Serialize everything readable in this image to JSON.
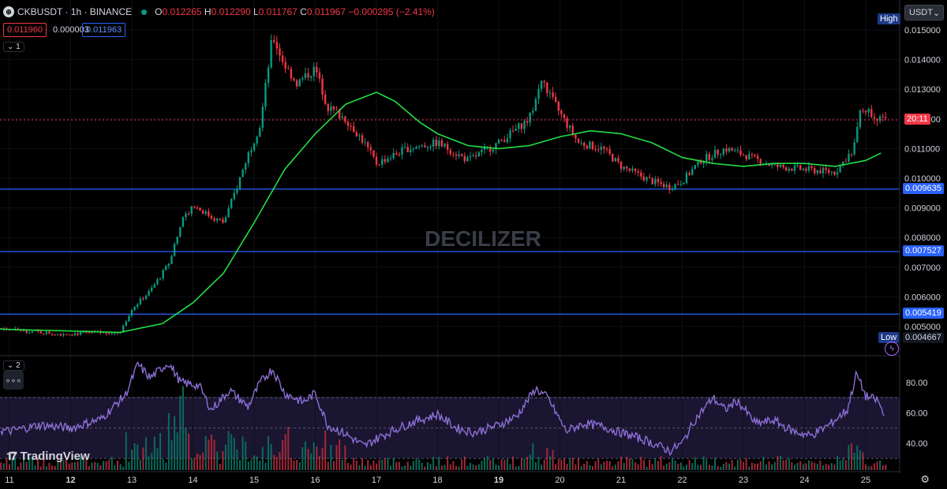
{
  "header": {
    "symbol": "CKBUSDT · 1h · BINANCE",
    "o": "0.012265",
    "h": "0.012290",
    "l": "0.011767",
    "c": "0.011967",
    "change": "−0.000295 (−2.41%)",
    "bid": "0.011960",
    "spread": "0.000003",
    "ask": "0.011963",
    "pane1": "1",
    "pane2": "2"
  },
  "currency": "USDT",
  "watermark": "DECILIZER",
  "branding": "TradingView",
  "chart_data": [
    {
      "type": "candlestick",
      "pane": "price",
      "x_ticks": [
        "11",
        "12",
        "13",
        "14",
        "15",
        "16",
        "17",
        "18",
        "19",
        "20",
        "21",
        "22",
        "23",
        "24",
        "25"
      ],
      "y_ticks": [
        "0.005000",
        "0.006000",
        "0.007000",
        "0.008000",
        "0.009000",
        "0.010000",
        "0.011000",
        "0.012000",
        "0.013000",
        "0.014000",
        "0.015000"
      ],
      "ylim": [
        0.0043,
        0.0155
      ],
      "high_label": "High",
      "low_label": "Low",
      "low_value": "0.004667",
      "current_price_countdown": "20:11",
      "current_price": 0.011967,
      "horizontal_levels": [
        {
          "value": 0.009635,
          "label": "0.009635"
        },
        {
          "value": 0.007527,
          "label": "0.007527"
        },
        {
          "value": 0.005419,
          "label": "0.005419"
        }
      ],
      "close_path": [
        [
          10.0,
          0.00505
        ],
        [
          11.0,
          0.0049
        ],
        [
          11.8,
          0.00475
        ],
        [
          12.8,
          0.0048
        ],
        [
          13.0,
          0.0056
        ],
        [
          13.3,
          0.0062
        ],
        [
          13.6,
          0.0071
        ],
        [
          13.8,
          0.0085
        ],
        [
          14.0,
          0.0091
        ],
        [
          14.3,
          0.0087
        ],
        [
          14.5,
          0.0085
        ],
        [
          14.7,
          0.0096
        ],
        [
          14.9,
          0.0108
        ],
        [
          15.1,
          0.0118
        ],
        [
          15.3,
          0.0148
        ],
        [
          15.5,
          0.0138
        ],
        [
          15.7,
          0.0132
        ],
        [
          16.0,
          0.0137
        ],
        [
          16.2,
          0.0124
        ],
        [
          16.5,
          0.012
        ],
        [
          16.8,
          0.0112
        ],
        [
          17.0,
          0.0105
        ],
        [
          17.5,
          0.011
        ],
        [
          18.0,
          0.0112
        ],
        [
          18.5,
          0.0106
        ],
        [
          19.0,
          0.0112
        ],
        [
          19.5,
          0.012
        ],
        [
          19.7,
          0.0133
        ],
        [
          20.0,
          0.0122
        ],
        [
          20.3,
          0.0112
        ],
        [
          20.7,
          0.011
        ],
        [
          21.0,
          0.0104
        ],
        [
          21.5,
          0.0099
        ],
        [
          21.8,
          0.0097
        ],
        [
          22.0,
          0.0099
        ],
        [
          22.3,
          0.0106
        ],
        [
          22.7,
          0.011
        ],
        [
          23.0,
          0.0108
        ],
        [
          23.5,
          0.0104
        ],
        [
          24.0,
          0.0103
        ],
        [
          24.5,
          0.0102
        ],
        [
          24.8,
          0.011
        ],
        [
          24.9,
          0.0124
        ],
        [
          25.1,
          0.0122
        ],
        [
          25.3,
          0.0119
        ]
      ],
      "ma_path": [
        [
          10.0,
          0.005
        ],
        [
          11.0,
          0.0049
        ],
        [
          12.0,
          0.00485
        ],
        [
          12.8,
          0.0048
        ],
        [
          13.5,
          0.0051
        ],
        [
          14.0,
          0.0058
        ],
        [
          14.5,
          0.0068
        ],
        [
          15.0,
          0.0085
        ],
        [
          15.5,
          0.0103
        ],
        [
          16.0,
          0.0115
        ],
        [
          16.5,
          0.0125
        ],
        [
          17.0,
          0.0129
        ],
        [
          17.3,
          0.0126
        ],
        [
          17.7,
          0.0119
        ],
        [
          18.0,
          0.0115
        ],
        [
          18.5,
          0.0111
        ],
        [
          19.0,
          0.011
        ],
        [
          19.5,
          0.0111
        ],
        [
          20.0,
          0.0114
        ],
        [
          20.5,
          0.0116
        ],
        [
          21.0,
          0.0115
        ],
        [
          21.5,
          0.0112
        ],
        [
          22.0,
          0.0107
        ],
        [
          22.5,
          0.0105
        ],
        [
          23.0,
          0.0104
        ],
        [
          23.5,
          0.0105
        ],
        [
          24.0,
          0.0105
        ],
        [
          24.5,
          0.0104
        ],
        [
          25.0,
          0.0106
        ],
        [
          25.3,
          0.0109
        ]
      ]
    },
    {
      "type": "line",
      "pane": "indicator",
      "y_ticks": [
        "80.00",
        "60.00",
        "40.00"
      ],
      "ylim": [
        20,
        100
      ],
      "guide_levels": [
        70,
        50,
        30
      ],
      "line_path": [
        [
          10.0,
          52
        ],
        [
          10.5,
          50
        ],
        [
          11.0,
          48
        ],
        [
          11.5,
          52
        ],
        [
          12.0,
          50
        ],
        [
          12.5,
          56
        ],
        [
          12.9,
          72
        ],
        [
          13.1,
          92
        ],
        [
          13.3,
          83
        ],
        [
          13.6,
          93
        ],
        [
          13.8,
          80
        ],
        [
          14.1,
          78
        ],
        [
          14.3,
          62
        ],
        [
          14.6,
          75
        ],
        [
          14.9,
          64
        ],
        [
          15.1,
          80
        ],
        [
          15.3,
          89
        ],
        [
          15.5,
          73
        ],
        [
          15.8,
          67
        ],
        [
          16.0,
          73
        ],
        [
          16.2,
          52
        ],
        [
          16.5,
          46
        ],
        [
          16.8,
          38
        ],
        [
          17.0,
          43
        ],
        [
          17.3,
          49
        ],
        [
          17.6,
          54
        ],
        [
          18.0,
          59
        ],
        [
          18.3,
          50
        ],
        [
          18.6,
          47
        ],
        [
          19.0,
          52
        ],
        [
          19.3,
          58
        ],
        [
          19.6,
          76
        ],
        [
          19.8,
          70
        ],
        [
          20.1,
          48
        ],
        [
          20.4,
          53
        ],
        [
          20.7,
          51
        ],
        [
          21.0,
          47
        ],
        [
          21.4,
          42
        ],
        [
          21.8,
          35
        ],
        [
          22.0,
          40
        ],
        [
          22.2,
          55
        ],
        [
          22.5,
          70
        ],
        [
          22.7,
          62
        ],
        [
          22.9,
          68
        ],
        [
          23.2,
          53
        ],
        [
          23.5,
          55
        ],
        [
          23.8,
          48
        ],
        [
          24.1,
          45
        ],
        [
          24.4,
          52
        ],
        [
          24.7,
          62
        ],
        [
          24.85,
          86
        ],
        [
          25.0,
          71
        ],
        [
          25.2,
          68
        ],
        [
          25.3,
          58
        ]
      ]
    }
  ]
}
